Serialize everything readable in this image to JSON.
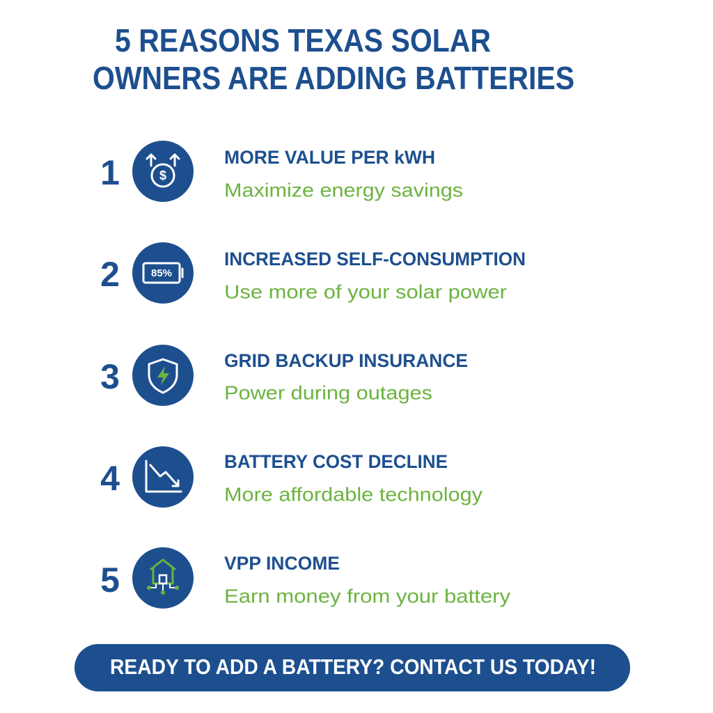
{
  "header": {
    "title_lines": [
      "5 REASONS TEXAS SOLAR",
      "OWNERS ARE ADDING BATTERIES"
    ]
  },
  "items": [
    {
      "number": "1",
      "icon_text": "$",
      "heading": "MORE VALUE PER kWH",
      "subtitle": "Maximize energy savings"
    },
    {
      "number": "2",
      "icon_text": "85%",
      "heading": "INCREASED SELF-CONSUMPTION",
      "subtitle": "Use more of your solar power"
    },
    {
      "number": "3",
      "heading": "GRID BACKUP INSURANCE",
      "subtitle": "Power during outages"
    },
    {
      "number": "4",
      "heading": "BATTERY COST DECLINE",
      "subtitle": "More affordable technology"
    },
    {
      "number": "5",
      "heading": "VPP INCOME",
      "subtitle": "Earn money from your battery"
    }
  ],
  "cta": {
    "label": "READY TO ADD A BATTERY? CONTACT US TODAY!"
  }
}
